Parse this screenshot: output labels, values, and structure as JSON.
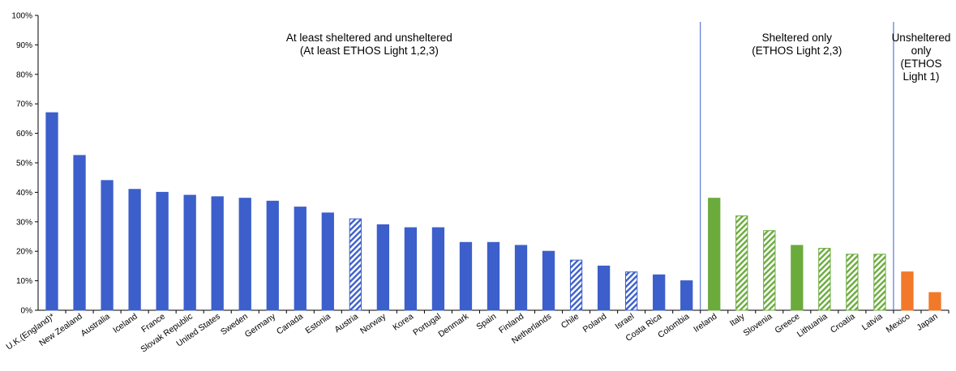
{
  "chart_data": {
    "type": "bar",
    "title": "",
    "xlabel": "",
    "ylabel": "",
    "ylim": [
      0,
      100
    ],
    "yticks": [
      0,
      10,
      20,
      30,
      40,
      50,
      60,
      70,
      80,
      90,
      100
    ],
    "ytick_labels": [
      "0%",
      "10%",
      "20%",
      "30%",
      "40%",
      "50%",
      "60%",
      "70%",
      "80%",
      "90%",
      "100%"
    ],
    "grid": false,
    "legend": "none",
    "colors": {
      "sheltered_and_unsheltered": "#3C5FCB",
      "sheltered_only": "#6AAB3C",
      "unsheltered_only": "#F2792A",
      "separator": "#3C5FCB"
    },
    "groups": [
      {
        "key": "sheltered_and_unsheltered",
        "label_lines": [
          "At least sheltered and unsheltered",
          "(At least ETHOS Light 1,2,3)"
        ],
        "categories": [
          "U.K.(England)*",
          "New Zealand",
          "Australia",
          "Iceland",
          "France",
          "Slovak Republic",
          "United States",
          "Sweden",
          "Germany",
          "Canada",
          "Estonia",
          "Austria",
          "Norway",
          "Korea",
          "Portugal",
          "Denmark",
          "Spain",
          "Finland",
          "Netherlands",
          "Chile",
          "Poland",
          "Israel",
          "Costa Rica",
          "Colombia"
        ],
        "values": [
          67,
          52.5,
          44,
          41,
          40,
          39,
          38.5,
          38,
          37,
          35,
          33,
          31,
          29,
          28,
          28,
          23,
          23,
          22,
          20,
          17,
          15,
          13,
          12,
          10
        ],
        "hatched": [
          false,
          false,
          false,
          false,
          false,
          false,
          false,
          false,
          false,
          false,
          false,
          true,
          false,
          false,
          false,
          false,
          false,
          false,
          false,
          true,
          false,
          true,
          false,
          false
        ]
      },
      {
        "key": "sheltered_only",
        "label_lines": [
          "Sheltered only",
          "(ETHOS Light 2,3)"
        ],
        "categories": [
          "Ireland",
          "Italy",
          "Slovenia",
          "Greece",
          "Lithuania",
          "Croatia",
          "Latvia"
        ],
        "values": [
          38,
          32,
          27,
          22,
          21,
          19,
          19
        ],
        "hatched": [
          false,
          true,
          true,
          false,
          true,
          true,
          true
        ]
      },
      {
        "key": "unsheltered_only",
        "label_lines": [
          "Unsheltered",
          "only",
          "(ETHOS",
          "Light 1)"
        ],
        "categories": [
          "Mexico",
          "Japan"
        ],
        "values": [
          13,
          6
        ],
        "hatched": [
          false,
          false
        ]
      }
    ]
  }
}
